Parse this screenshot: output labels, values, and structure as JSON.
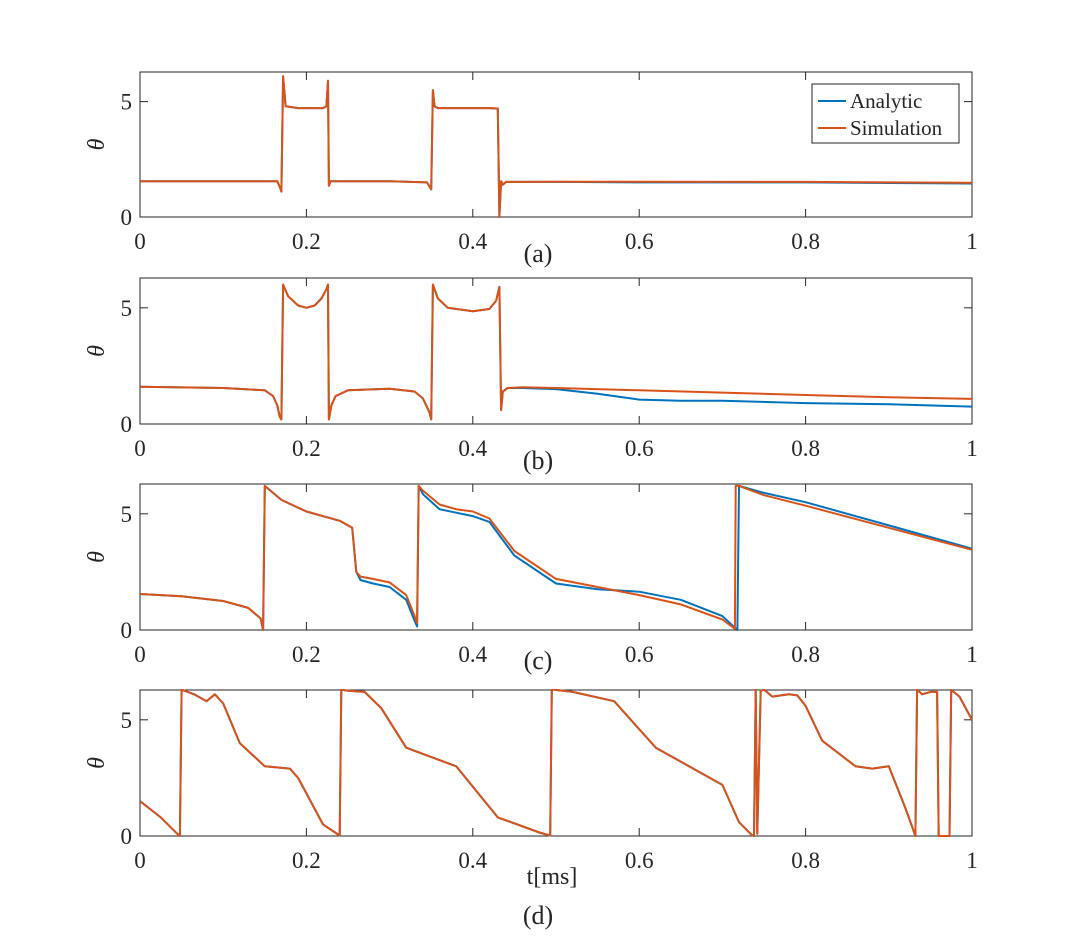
{
  "colors": {
    "analytic": "#0072BD",
    "simulation": "#D95319",
    "axis": "#262626"
  },
  "chart_data": [
    {
      "type": "line",
      "panel_label": "(a)",
      "xlabel": "",
      "ylabel": "θ",
      "xlim": [
        0,
        1
      ],
      "ylim": [
        0,
        6.283
      ],
      "xticks": [
        "0",
        "0.2",
        "0.4",
        "0.6",
        "0.8",
        "1"
      ],
      "yticks": [
        "0",
        "5"
      ],
      "legend": {
        "position": "top-right",
        "entries": [
          "Analytic",
          "Simulation"
        ]
      },
      "series": [
        {
          "name": "Analytic",
          "color": "#0072BD",
          "x": [
            0,
            0.165,
            0.168,
            0.17,
            0.172,
            0.175,
            0.19,
            0.2,
            0.22,
            0.224,
            0.226,
            0.227,
            0.229,
            0.232,
            0.25,
            0.3,
            0.345,
            0.35,
            0.352,
            0.354,
            0.358,
            0.38,
            0.42,
            0.43,
            0.432,
            0.434,
            0.436,
            0.44,
            0.5,
            0.6,
            0.8,
            1.0
          ],
          "y": [
            1.55,
            1.55,
            1.3,
            1.1,
            6.1,
            4.8,
            4.72,
            4.72,
            4.72,
            4.8,
            5.9,
            1.35,
            1.55,
            1.55,
            1.55,
            1.55,
            1.5,
            1.2,
            5.5,
            4.8,
            4.72,
            4.72,
            4.72,
            4.7,
            0.0,
            1.55,
            1.4,
            1.52,
            1.52,
            1.5,
            1.5,
            1.45
          ]
        },
        {
          "name": "Simulation",
          "color": "#D95319",
          "x": [
            0,
            0.165,
            0.168,
            0.17,
            0.172,
            0.175,
            0.19,
            0.2,
            0.22,
            0.224,
            0.226,
            0.227,
            0.229,
            0.232,
            0.25,
            0.3,
            0.345,
            0.35,
            0.352,
            0.354,
            0.358,
            0.38,
            0.42,
            0.43,
            0.432,
            0.434,
            0.436,
            0.44,
            0.5,
            0.6,
            0.8,
            1.0
          ],
          "y": [
            1.55,
            1.55,
            1.3,
            1.1,
            6.1,
            4.8,
            4.72,
            4.72,
            4.72,
            4.8,
            5.9,
            1.35,
            1.55,
            1.55,
            1.55,
            1.55,
            1.5,
            1.2,
            5.5,
            4.8,
            4.72,
            4.72,
            4.72,
            4.7,
            0.0,
            1.55,
            1.4,
            1.52,
            1.53,
            1.53,
            1.52,
            1.48
          ]
        }
      ]
    },
    {
      "type": "line",
      "panel_label": "(b)",
      "xlabel": "",
      "ylabel": "θ",
      "xlim": [
        0,
        1
      ],
      "ylim": [
        0,
        6.283
      ],
      "xticks": [
        "0",
        "0.2",
        "0.4",
        "0.6",
        "0.8",
        "1"
      ],
      "yticks": [
        "0",
        "5"
      ],
      "series": [
        {
          "name": "Analytic",
          "color": "#0072BD",
          "x": [
            0,
            0.1,
            0.15,
            0.16,
            0.165,
            0.168,
            0.17,
            0.172,
            0.178,
            0.19,
            0.2,
            0.21,
            0.218,
            0.224,
            0.226,
            0.227,
            0.23,
            0.235,
            0.25,
            0.3,
            0.33,
            0.34,
            0.348,
            0.35,
            0.352,
            0.358,
            0.37,
            0.4,
            0.42,
            0.428,
            0.432,
            0.434,
            0.436,
            0.442,
            0.46,
            0.5,
            0.55,
            0.6,
            0.65,
            0.7,
            0.8,
            0.9,
            1.0
          ],
          "y": [
            1.6,
            1.55,
            1.45,
            1.2,
            0.8,
            0.3,
            0.2,
            6.0,
            5.5,
            5.1,
            5.0,
            5.1,
            5.4,
            5.8,
            6.0,
            0.2,
            0.8,
            1.2,
            1.45,
            1.52,
            1.4,
            1.1,
            0.5,
            0.2,
            6.0,
            5.4,
            5.0,
            4.85,
            4.95,
            5.3,
            5.9,
            0.6,
            1.4,
            1.55,
            1.55,
            1.5,
            1.3,
            1.05,
            1.0,
            1.0,
            0.9,
            0.85,
            0.75
          ]
        },
        {
          "name": "Simulation",
          "color": "#D95319",
          "x": [
            0,
            0.1,
            0.15,
            0.16,
            0.165,
            0.168,
            0.17,
            0.172,
            0.178,
            0.19,
            0.2,
            0.21,
            0.218,
            0.224,
            0.226,
            0.227,
            0.23,
            0.235,
            0.25,
            0.3,
            0.33,
            0.34,
            0.348,
            0.35,
            0.352,
            0.358,
            0.37,
            0.4,
            0.42,
            0.428,
            0.432,
            0.434,
            0.436,
            0.442,
            0.46,
            0.5,
            0.6,
            0.7,
            0.8,
            0.9,
            1.0
          ],
          "y": [
            1.6,
            1.55,
            1.45,
            1.2,
            0.8,
            0.3,
            0.2,
            6.0,
            5.5,
            5.1,
            5.0,
            5.1,
            5.4,
            5.8,
            6.0,
            0.2,
            0.8,
            1.2,
            1.45,
            1.52,
            1.4,
            1.1,
            0.5,
            0.2,
            6.0,
            5.4,
            5.0,
            4.85,
            4.95,
            5.3,
            5.9,
            0.6,
            1.4,
            1.55,
            1.58,
            1.55,
            1.45,
            1.35,
            1.25,
            1.15,
            1.08
          ]
        }
      ]
    },
    {
      "type": "line",
      "panel_label": "(c)",
      "xlabel": "",
      "ylabel": "θ",
      "xlim": [
        0,
        1
      ],
      "ylim": [
        0,
        6.283
      ],
      "xticks": [
        "0",
        "0.2",
        "0.4",
        "0.6",
        "0.8",
        "1"
      ],
      "yticks": [
        "0",
        "5"
      ],
      "series": [
        {
          "name": "Analytic",
          "color": "#0072BD",
          "x": [
            0,
            0.05,
            0.1,
            0.13,
            0.145,
            0.148,
            0.15,
            0.17,
            0.2,
            0.24,
            0.255,
            0.26,
            0.265,
            0.28,
            0.3,
            0.32,
            0.33,
            0.333,
            0.335,
            0.34,
            0.36,
            0.38,
            0.4,
            0.42,
            0.45,
            0.5,
            0.55,
            0.6,
            0.65,
            0.7,
            0.715,
            0.718,
            0.72,
            0.75,
            0.8,
            0.9,
            1.0
          ],
          "y": [
            1.55,
            1.45,
            1.25,
            0.95,
            0.5,
            0.0,
            6.2,
            5.6,
            5.1,
            4.7,
            4.4,
            2.5,
            2.15,
            2.0,
            1.85,
            1.3,
            0.4,
            0.15,
            6.2,
            5.85,
            5.2,
            5.05,
            4.9,
            4.65,
            3.2,
            2.0,
            1.75,
            1.65,
            1.3,
            0.6,
            0.1,
            0.0,
            6.2,
            5.9,
            5.5,
            4.5,
            3.5
          ]
        },
        {
          "name": "Simulation",
          "color": "#D95319",
          "x": [
            0,
            0.05,
            0.1,
            0.13,
            0.145,
            0.148,
            0.15,
            0.17,
            0.2,
            0.24,
            0.255,
            0.26,
            0.265,
            0.28,
            0.3,
            0.32,
            0.33,
            0.333,
            0.335,
            0.34,
            0.36,
            0.38,
            0.4,
            0.42,
            0.45,
            0.5,
            0.55,
            0.6,
            0.65,
            0.7,
            0.715,
            0.716,
            0.72,
            0.75,
            0.8,
            0.9,
            1.0
          ],
          "y": [
            1.55,
            1.45,
            1.25,
            0.95,
            0.5,
            0.0,
            6.2,
            5.6,
            5.1,
            4.7,
            4.4,
            2.5,
            2.3,
            2.2,
            2.05,
            1.5,
            0.6,
            0.3,
            6.2,
            6.0,
            5.4,
            5.2,
            5.1,
            4.8,
            3.4,
            2.2,
            1.85,
            1.5,
            1.1,
            0.45,
            0.05,
            6.2,
            6.2,
            5.8,
            5.35,
            4.4,
            3.45
          ]
        }
      ]
    },
    {
      "type": "line",
      "panel_label": "(d)",
      "xlabel": "t[ms]",
      "ylabel": "θ",
      "xlim": [
        0,
        1
      ],
      "ylim": [
        0,
        6.283
      ],
      "xticks": [
        "0",
        "0.2",
        "0.4",
        "0.6",
        "0.8",
        "1"
      ],
      "yticks": [
        "0",
        "5"
      ],
      "series": [
        {
          "name": "Analytic",
          "color": "#0072BD",
          "x": [
            0,
            0.025,
            0.046,
            0.048,
            0.05,
            0.065,
            0.08,
            0.09,
            0.1,
            0.12,
            0.15,
            0.18,
            0.19,
            0.22,
            0.24,
            0.242,
            0.25,
            0.27,
            0.29,
            0.32,
            0.38,
            0.43,
            0.48,
            0.493,
            0.495,
            0.497,
            0.52,
            0.57,
            0.62,
            0.68,
            0.7,
            0.72,
            0.735,
            0.738,
            0.74,
            0.742,
            0.746,
            0.75,
            0.76,
            0.78,
            0.79,
            0.8,
            0.82,
            0.86,
            0.88,
            0.9,
            0.92,
            0.93,
            0.932,
            0.934,
            0.94,
            0.95,
            0.958,
            0.96,
            0.962,
            0.968,
            0.973,
            0.975,
            0.978,
            0.985,
            1.0
          ],
          "y": [
            1.5,
            0.8,
            0.05,
            0.0,
            6.3,
            6.1,
            5.8,
            6.1,
            5.7,
            4.0,
            3.0,
            2.9,
            2.5,
            0.5,
            0.02,
            6.3,
            6.25,
            6.2,
            5.5,
            3.8,
            3.0,
            0.8,
            0.15,
            0.02,
            6.3,
            6.3,
            6.2,
            5.8,
            3.8,
            2.6,
            2.2,
            0.6,
            0.05,
            0.0,
            6.3,
            0.1,
            6.25,
            6.3,
            6.0,
            6.1,
            6.05,
            5.6,
            4.1,
            3.0,
            2.9,
            3.0,
            1.2,
            0.2,
            0.0,
            6.3,
            6.1,
            6.2,
            6.2,
            0.0,
            0.0,
            0.0,
            0.0,
            6.3,
            6.2,
            6.0,
            5.0
          ]
        },
        {
          "name": "Simulation",
          "color": "#D95319",
          "x": [
            0,
            0.025,
            0.046,
            0.048,
            0.05,
            0.065,
            0.08,
            0.09,
            0.1,
            0.12,
            0.15,
            0.18,
            0.19,
            0.22,
            0.24,
            0.242,
            0.25,
            0.27,
            0.29,
            0.32,
            0.38,
            0.43,
            0.48,
            0.493,
            0.495,
            0.497,
            0.52,
            0.57,
            0.62,
            0.68,
            0.7,
            0.72,
            0.735,
            0.738,
            0.74,
            0.742,
            0.746,
            0.75,
            0.76,
            0.78,
            0.79,
            0.8,
            0.82,
            0.86,
            0.88,
            0.9,
            0.92,
            0.93,
            0.932,
            0.934,
            0.94,
            0.95,
            0.958,
            0.96,
            0.962,
            0.968,
            0.973,
            0.975,
            0.978,
            0.985,
            1.0
          ],
          "y": [
            1.5,
            0.8,
            0.05,
            0.0,
            6.3,
            6.1,
            5.8,
            6.1,
            5.7,
            4.0,
            3.0,
            2.9,
            2.5,
            0.5,
            0.02,
            6.3,
            6.25,
            6.2,
            5.5,
            3.8,
            3.0,
            0.8,
            0.15,
            0.02,
            6.3,
            6.3,
            6.2,
            5.8,
            3.8,
            2.6,
            2.2,
            0.6,
            0.05,
            0.0,
            6.3,
            0.1,
            6.25,
            6.3,
            6.0,
            6.1,
            6.05,
            5.6,
            4.1,
            3.0,
            2.9,
            3.0,
            1.2,
            0.2,
            0.0,
            6.3,
            6.1,
            6.2,
            6.2,
            0.0,
            0.0,
            0.0,
            0.0,
            6.3,
            6.2,
            6.0,
            5.0
          ]
        }
      ]
    }
  ]
}
